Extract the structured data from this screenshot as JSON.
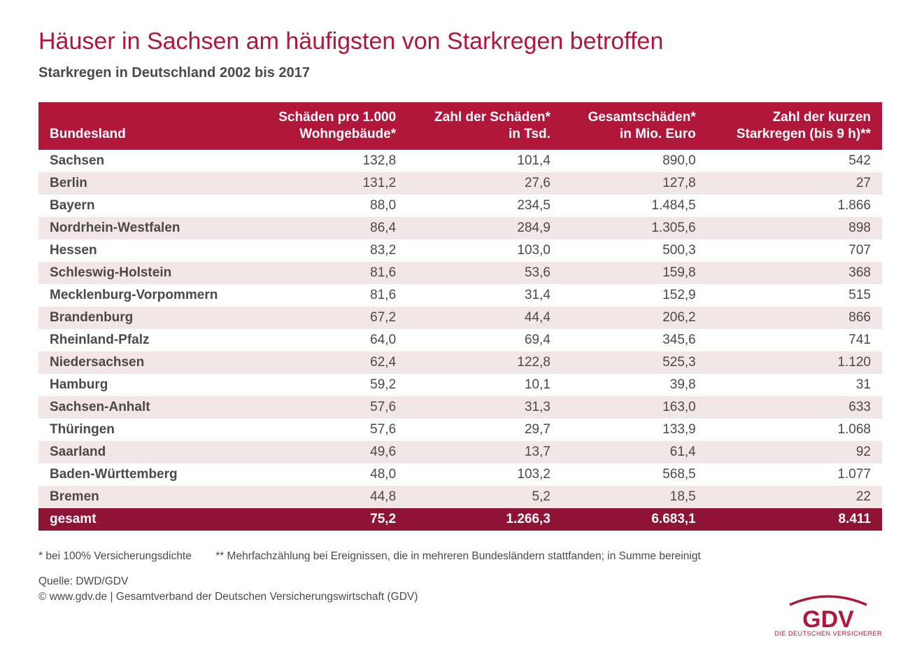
{
  "page": {
    "title": "Häuser in Sachsen am häufigsten von Starkregen betroffen",
    "subtitle": "Starkregen in Deutschland 2002 bis 2017"
  },
  "table": {
    "columns": [
      "Bundesland",
      "Schäden pro 1.000\nWohngebäude*",
      "Zahl der Schäden*\nin Tsd.",
      "Gesamtschäden*\nin Mio. Euro",
      "Zahl der kurzen\nStarkregen (bis 9 h)**"
    ],
    "rows": [
      [
        "Sachsen",
        "132,8",
        "101,4",
        "890,0",
        "542"
      ],
      [
        "Berlin",
        "131,2",
        "27,6",
        "127,8",
        "27"
      ],
      [
        "Bayern",
        "88,0",
        "234,5",
        "1.484,5",
        "1.866"
      ],
      [
        "Nordrhein-Westfalen",
        "86,4",
        "284,9",
        "1.305,6",
        "898"
      ],
      [
        "Hessen",
        "83,2",
        "103,0",
        "500,3",
        "707"
      ],
      [
        "Schleswig-Holstein",
        "81,6",
        "53,6",
        "159,8",
        "368"
      ],
      [
        "Mecklenburg-Vorpommern",
        "81,6",
        "31,4",
        "152,9",
        "515"
      ],
      [
        "Brandenburg",
        "67,2",
        "44,4",
        "206,2",
        "866"
      ],
      [
        "Rheinland-Pfalz",
        "64,0",
        "69,4",
        "345,6",
        "741"
      ],
      [
        "Niedersachsen",
        "62,4",
        "122,8",
        "525,3",
        "1.120"
      ],
      [
        "Hamburg",
        "59,2",
        "10,1",
        "39,8",
        "31"
      ],
      [
        "Sachsen-Anhalt",
        "57,6",
        "31,3",
        "163,0",
        "633"
      ],
      [
        "Thüringen",
        "57,6",
        "29,7",
        "133,9",
        "1.068"
      ],
      [
        "Saarland",
        "49,6",
        "13,7",
        "61,4",
        "92"
      ],
      [
        "Baden-Württemberg",
        "48,0",
        "103,2",
        "568,5",
        "1.077"
      ],
      [
        "Bremen",
        "44,8",
        "5,2",
        "18,5",
        "22"
      ]
    ],
    "total": [
      "gesamt",
      "75,2",
      "1.266,3",
      "6.683,1",
      "8.411"
    ]
  },
  "footnotes": {
    "note1": "* bei 100% Versicherungsdichte",
    "note2": "** Mehrfachzählung bei Ereignissen, die in mehreren Bundesländern stattfanden; in Summe bereinigt",
    "source": "Quelle: DWD/GDV",
    "copyright": "© www.gdv.de | Gesamtverband der Deutschen Versicherungswirtschaft (GDV)"
  },
  "logo": {
    "text": "GDV",
    "subtitle": "DIE DEUTSCHEN VERSICHERER",
    "color": "#b1173b"
  },
  "style": {
    "accent": "#b1173b",
    "accent_dark": "#8f1334",
    "stripe": "#f2e6e6",
    "text": "#4a4a4a"
  }
}
